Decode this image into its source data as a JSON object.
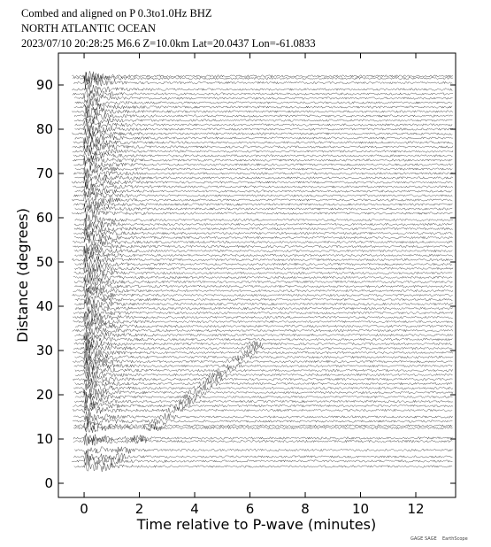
{
  "chart_data": {
    "type": "record-section",
    "title": "Combed and aligned on P  0.3to1.0Hz  BHZ",
    "subtitle": "NORTH ATLANTIC OCEAN",
    "event": "2023/07/10  20:28:25  M6.6  Z=10.0km Lat=20.0437 Lon=-61.0833",
    "x_label": "Time relative to P-wave (minutes)",
    "y_label": "Distance (degrees)",
    "xlim": [
      -0.93,
      13.44
    ],
    "ylim": [
      -3.2,
      97.2
    ],
    "xticks": [
      0,
      2,
      4,
      6,
      8,
      10,
      12
    ],
    "yticks": [
      0,
      10,
      20,
      30,
      40,
      50,
      60,
      70,
      80,
      90
    ],
    "color": "#000000",
    "distances": [
      3.8,
      5,
      6,
      7.5,
      9.5,
      10.2,
      12.5,
      13,
      14,
      15,
      16.5,
      17.5,
      18.5,
      19.5,
      20.5,
      21.5,
      22.5,
      23.5,
      24.5,
      25.5,
      26.5,
      27.5,
      28.5,
      29.5,
      30.5,
      31.5,
      32.5,
      33.5,
      34.5,
      35.5,
      36.5,
      37.5,
      38.5,
      39.5,
      40.5,
      41.5,
      42.5,
      43.5,
      44.5,
      45.5,
      46.5,
      47.5,
      48.5,
      49.5,
      50.5,
      51.5,
      52.5,
      53.5,
      54.5,
      55.5,
      56.5,
      57.5,
      58.5,
      59.5,
      61,
      62,
      63,
      64,
      65,
      66,
      67,
      68,
      69,
      70,
      71,
      72,
      73,
      74,
      75,
      76,
      77,
      78,
      79,
      80,
      81,
      82,
      83,
      84,
      85,
      86,
      87,
      88,
      89,
      90.5,
      91.5,
      92
    ],
    "logos": [
      "GAGE",
      "SAGE",
      "EarthScope"
    ]
  }
}
